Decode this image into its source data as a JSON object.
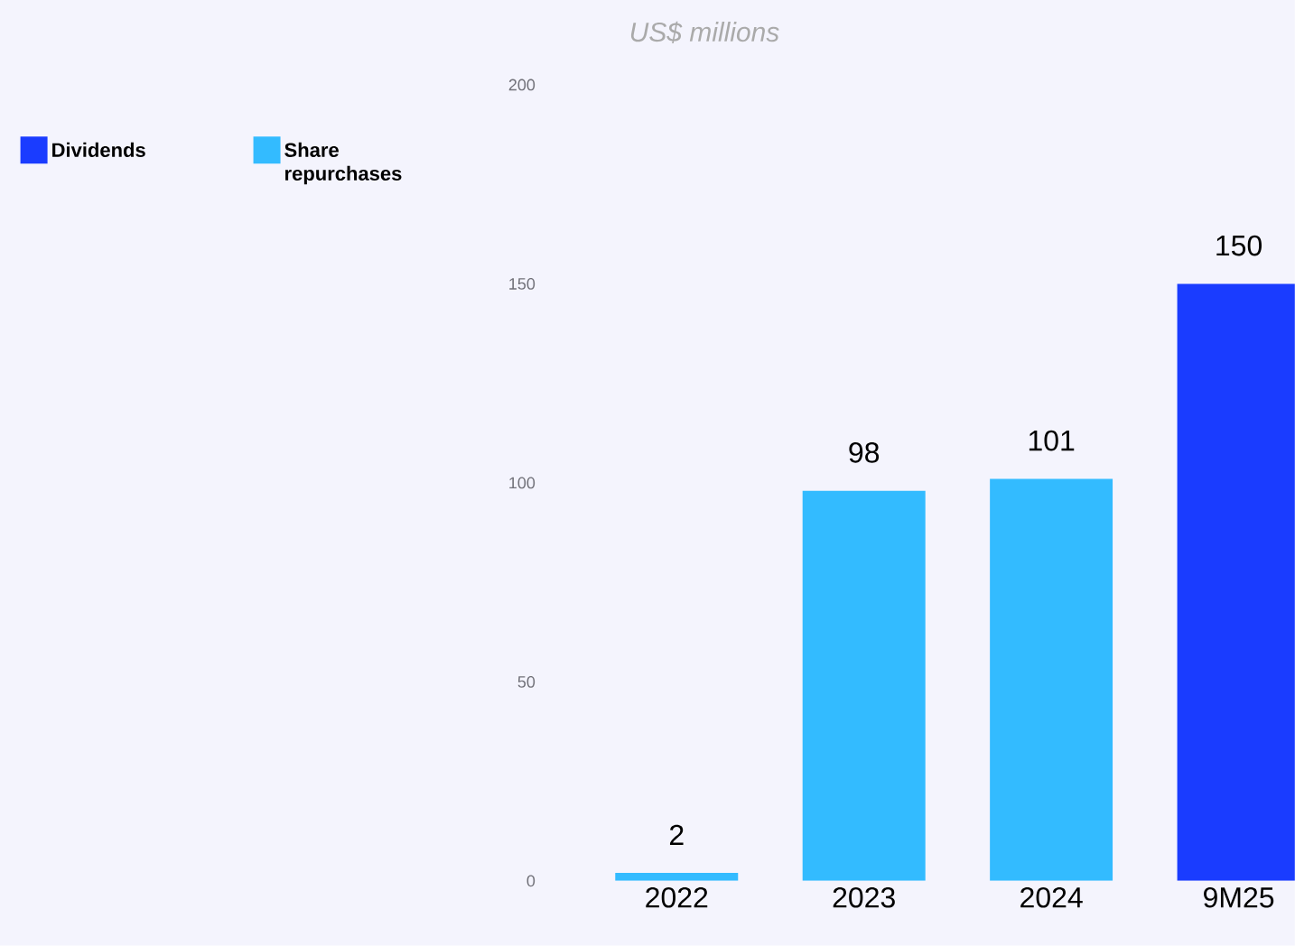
{
  "chart_data": {
    "type": "bar",
    "stacked": true,
    "ylabel": "US$ millions",
    "categories": [
      "2022",
      "2023",
      "2024",
      "9M25"
    ],
    "series": [
      {
        "name": "Dividends",
        "color": "#1a3cff",
        "values": [
          null,
          null,
          null,
          150
        ]
      },
      {
        "name": "Share repurchases",
        "color": "#33bbff",
        "values": [
          2,
          98,
          101,
          null
        ]
      }
    ],
    "ylim": [
      0,
      200
    ],
    "yticks": [
      0,
      50,
      100,
      150,
      200
    ],
    "data_labels": true,
    "legend": "top left"
  }
}
